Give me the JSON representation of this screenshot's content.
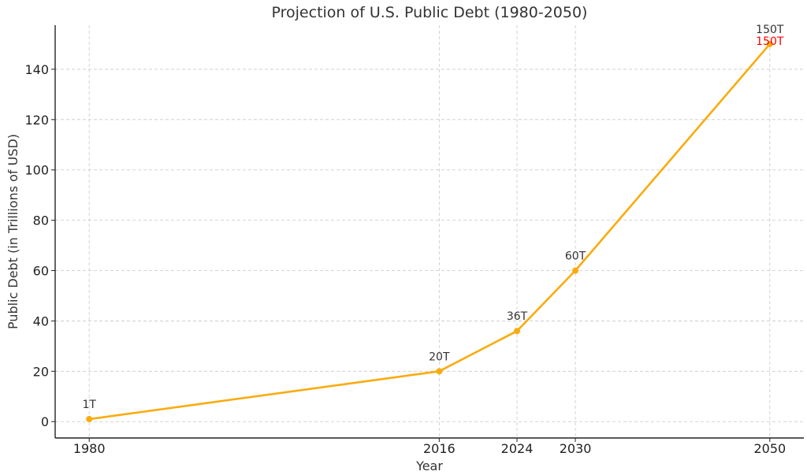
{
  "chart_data": {
    "type": "line",
    "title": "Projection of U.S. Public Debt (1980-2050)",
    "xlabel": "Year",
    "ylabel": "Public Debt (in Trillions of USD)",
    "x": [
      1980,
      2016,
      2024,
      2030,
      2050
    ],
    "x_tick_labels": [
      "1980",
      "2016",
      "2024",
      "2030",
      "2050"
    ],
    "y_ticks": [
      0,
      20,
      40,
      60,
      80,
      100,
      120,
      140
    ],
    "y_tick_labels": [
      "0",
      "20",
      "40",
      "60",
      "80",
      "100",
      "120",
      "140"
    ],
    "xlim": [
      1976.5,
      2053.5
    ],
    "ylim": [
      -6.5,
      157.5
    ],
    "grid": true,
    "series": [
      {
        "values": [
          1,
          20,
          36,
          60,
          150
        ],
        "color": "#f9ab0e",
        "data_labels": [
          "1T",
          "20T",
          "36T",
          "60T",
          "150T"
        ]
      }
    ],
    "annotations": [
      {
        "x": 2050,
        "y": 150,
        "text": "150T",
        "color": "#ff0000"
      }
    ]
  }
}
